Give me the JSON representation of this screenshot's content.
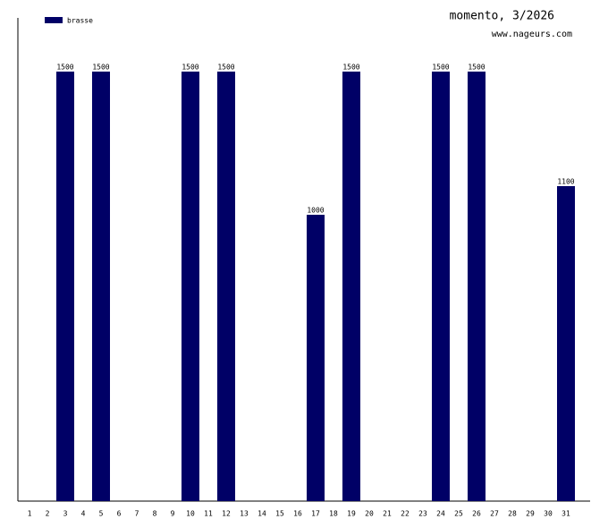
{
  "chart_data": {
    "type": "bar",
    "title": "momento, 3/2026",
    "subtitle": "www.nageurs.com",
    "categories": [
      "1",
      "2",
      "3",
      "4",
      "5",
      "6",
      "7",
      "8",
      "9",
      "10",
      "11",
      "12",
      "13",
      "14",
      "15",
      "16",
      "17",
      "18",
      "19",
      "20",
      "21",
      "22",
      "23",
      "24",
      "25",
      "26",
      "27",
      "28",
      "29",
      "30",
      "31"
    ],
    "series": [
      {
        "name": "brasse",
        "color": "#000066",
        "values": [
          null,
          null,
          1500,
          null,
          1500,
          null,
          null,
          null,
          null,
          1500,
          null,
          1500,
          null,
          null,
          null,
          null,
          1000,
          null,
          1500,
          null,
          null,
          null,
          null,
          1500,
          null,
          1500,
          null,
          null,
          null,
          null,
          1100
        ]
      }
    ],
    "ylim": [
      0,
      1687.5
    ],
    "legend": "top-left"
  }
}
